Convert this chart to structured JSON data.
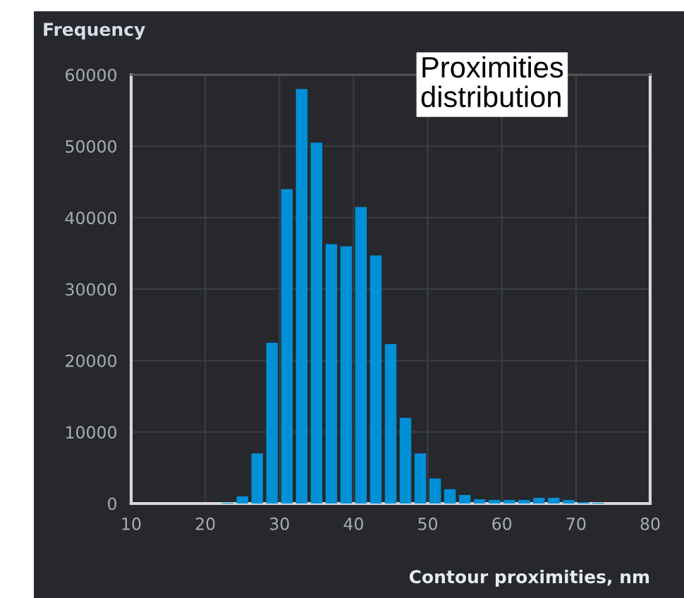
{
  "chart_data": {
    "type": "histogram",
    "title": "Proximities distribution",
    "ylabel": "Frequency",
    "xlabel": "Contour proximities, nm",
    "bins": [
      22,
      24,
      26,
      28,
      30,
      32,
      34,
      36,
      38,
      40,
      42,
      44,
      46,
      48,
      50,
      52,
      54,
      56,
      58,
      60,
      62,
      64,
      66,
      68,
      70,
      72,
      74
    ],
    "values": [
      100,
      1000,
      7000,
      22500,
      44000,
      58000,
      50500,
      36300,
      36000,
      41500,
      34700,
      22300,
      12000,
      7000,
      3500,
      2000,
      1200,
      600,
      500,
      500,
      500,
      800,
      800,
      500,
      200,
      100
    ],
    "color": "#0090d8",
    "xlim": [
      10,
      80
    ],
    "xticks": [
      10,
      20,
      30,
      40,
      50,
      60,
      70,
      80
    ],
    "ylim": [
      0,
      60000
    ],
    "yticks": [
      0,
      10000,
      20000,
      30000,
      40000,
      50000,
      60000
    ],
    "grid": true
  }
}
